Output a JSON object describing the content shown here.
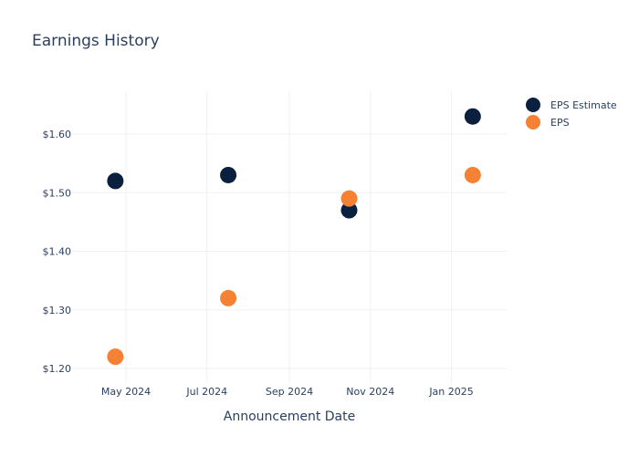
{
  "chart_data": {
    "type": "scatter",
    "title": "Earnings History",
    "xlabel": "Announcement Date",
    "ylabel": "",
    "x_ticks": [
      "May 2024",
      "Jul 2024",
      "Sep 2024",
      "Nov 2024",
      "Jan 2025"
    ],
    "y_ticks": [
      "$1.20",
      "$1.30",
      "$1.40",
      "$1.50",
      "$1.60"
    ],
    "ylim": [
      1.18,
      1.68
    ],
    "grid": true,
    "legend_position": "top-right",
    "series": [
      {
        "name": "EPS Estimate",
        "color": "#0b1f3f",
        "points": [
          {
            "x": "2024-04-23",
            "y": 1.52
          },
          {
            "x": "2024-07-17",
            "y": 1.53
          },
          {
            "x": "2024-10-16",
            "y": 1.47
          },
          {
            "x": "2025-01-17",
            "y": 1.63
          }
        ]
      },
      {
        "name": "EPS",
        "color": "#f58234",
        "points": [
          {
            "x": "2024-04-23",
            "y": 1.22
          },
          {
            "x": "2024-07-17",
            "y": 1.32
          },
          {
            "x": "2024-10-16",
            "y": 1.49
          },
          {
            "x": "2025-01-17",
            "y": 1.53
          }
        ]
      }
    ]
  }
}
